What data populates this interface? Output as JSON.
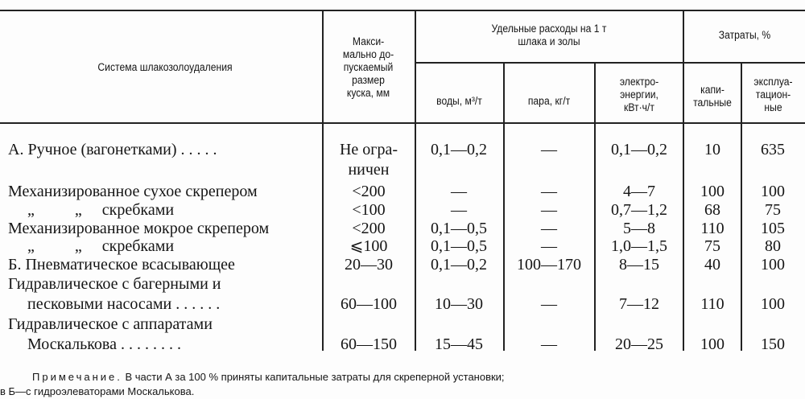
{
  "header": {
    "system": "Система шлакозолоудаления",
    "max_size": [
      "Макси-",
      "мально до-",
      "пускаемый",
      "размер",
      "куска, мм"
    ],
    "specific_group": [
      "Удельные расходы на 1 т",
      "шлака и золы"
    ],
    "water": "воды, м³/т",
    "steam": "пара, кг/т",
    "electricity": [
      "электро-",
      "энергии,",
      "кВт·ч/т"
    ],
    "costs_group": "Затраты, %",
    "capital": [
      "капи-",
      "тальные"
    ],
    "operating": [
      "эксплуа-",
      "тацион-",
      "ные"
    ]
  },
  "rows": [
    {
      "system": [
        "А. Ручное (вагонетками) . . . . ."
      ],
      "size": [
        "Не огра-",
        "ничен"
      ],
      "water": "0,1—0,2",
      "steam": "—",
      "el": "0,1—0,2",
      "cap": "10",
      "op": "635"
    },
    {
      "system": [
        "Механизированное сухое скрепером"
      ],
      "size": [
        "<200"
      ],
      "water": "—",
      "steam": "—",
      "el": "4—7",
      "cap": "100",
      "op": "100"
    },
    {
      "system": [
        "„          „     скребками"
      ],
      "size": [
        "<100"
      ],
      "water": "—",
      "steam": "—",
      "el": "0,7—1,2",
      "cap": "68",
      "op": "75"
    },
    {
      "system": [
        "Механизированное мокрое скрепером"
      ],
      "size": [
        "<200"
      ],
      "water": "0,1—0,5",
      "steam": "—",
      "el": "5—8",
      "cap": "110",
      "op": "105"
    },
    {
      "system": [
        "„          „     скребками"
      ],
      "size": [
        "⩽100"
      ],
      "water": "0,1—0,5",
      "steam": "—",
      "el": "1,0—1,5",
      "cap": "75",
      "op": "80"
    },
    {
      "system": [
        "Б. Пневматическое всасывающее"
      ],
      "size": [
        "20—30"
      ],
      "water": "0,1—0,2",
      "steam": "100—170",
      "el": "8—15",
      "cap": "40",
      "op": "100"
    },
    {
      "system": [
        "Гидравлическое с багерными и",
        "песковыми насосами . . . . . ."
      ],
      "size": [
        "60—100"
      ],
      "water": "10—30",
      "steam": "—",
      "el": "7—12",
      "cap": "110",
      "op": "100"
    },
    {
      "system": [
        "Гидравлическое с аппаратами",
        "Москалькова . . . . . . . ."
      ],
      "size": [
        "60—150"
      ],
      "water": "15—45",
      "steam": "—",
      "el": "20—25",
      "cap": "100",
      "op": "150"
    }
  ],
  "note": {
    "label": "Примечание.",
    "line1": "В части А за 100 % приняты капитальные затраты для скреперной установки;",
    "line2": "в Б—с гидроэлеваторами Москалькова."
  }
}
